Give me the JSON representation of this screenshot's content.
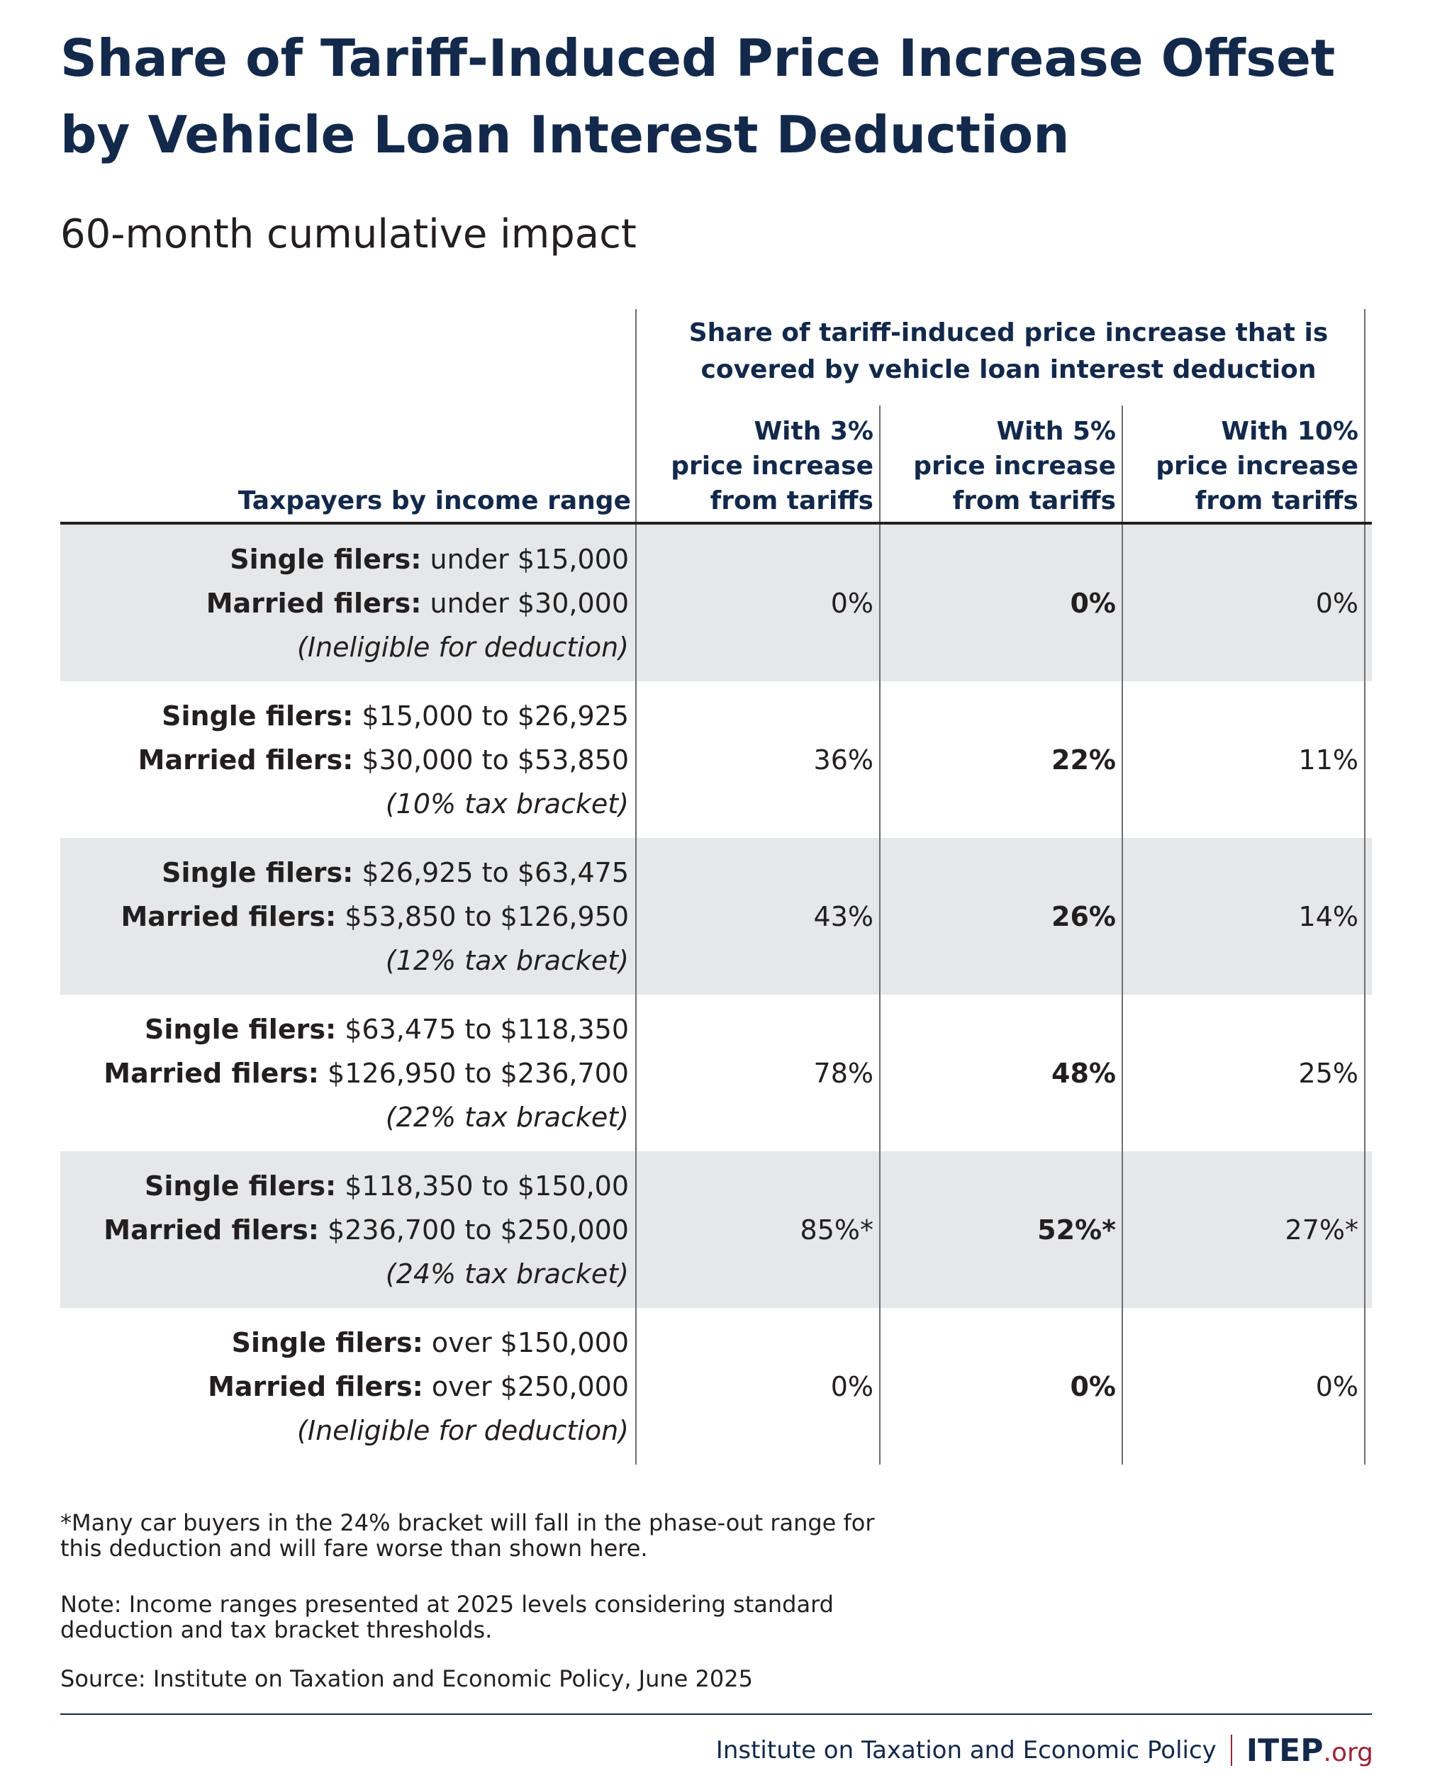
{
  "title": "Share of Tariff-Induced Price Increase Offset by Vehicle Loan Interest Deduction",
  "subtitle": "60-month cumulative impact",
  "table": {
    "group_header": "Share of tariff-induced price increase that is covered by vehicle loan interest deduction",
    "row_header": "Taxpayers by income range",
    "columns": [
      "With 3%\nprice increase\nfrom tariffs",
      "With 5%\nprice increase\nfrom tariffs",
      "With 10%\nprice increase\nfrom tariffs"
    ],
    "rows": [
      {
        "single_label": "Single filers:",
        "single_value": " under $15,000",
        "married_label": "Married filers:",
        "married_value": " under $30,000",
        "note": "(Ineligible for deduction)",
        "values": [
          "0%",
          "0%",
          "0%"
        ]
      },
      {
        "single_label": "Single filers:",
        "single_value": " $15,000 to $26,925",
        "married_label": "Married filers:",
        "married_value": " $30,000 to $53,850",
        "note": "(10% tax bracket)",
        "values": [
          "36%",
          "22%",
          "11%"
        ]
      },
      {
        "single_label": "Single filers:",
        "single_value": " $26,925 to $63,475",
        "married_label": "Married filers:",
        "married_value": " $53,850 to $126,950",
        "note": "(12% tax bracket)",
        "values": [
          "43%",
          "26%",
          "14%"
        ]
      },
      {
        "single_label": "Single filers:",
        "single_value": " $63,475 to $118,350",
        "married_label": "Married filers:",
        "married_value": " $126,950 to $236,700",
        "note": "(22% tax bracket)",
        "values": [
          "78%",
          "48%",
          "25%"
        ]
      },
      {
        "single_label": "Single filers:",
        "single_value": " $118,350 to $150,00",
        "married_label": "Married filers:",
        "married_value": " $236,700 to $250,000",
        "note": "(24% tax bracket)",
        "values": [
          "85%*",
          "52%*",
          "27%*"
        ]
      },
      {
        "single_label": "Single filers:",
        "single_value": " over $150,000",
        "married_label": "Married filers:",
        "married_value": " over $250,000",
        "note": "(Ineligible for deduction)",
        "values": [
          "0%",
          "0%",
          "0%"
        ]
      }
    ]
  },
  "chart_data": {
    "type": "table",
    "title": "Share of Tariff-Induced Price Increase Offset by Vehicle Loan Interest Deduction",
    "subtitle": "60-month cumulative impact",
    "columns": [
      "With 3% price increase from tariffs",
      "With 5% price increase from tariffs",
      "With 10% price increase from tariffs"
    ],
    "categories": [
      "Single filers: under $15,000 / Married filers: under $30,000 (Ineligible for deduction)",
      "Single filers: $15,000 to $26,925 / Married filers: $30,000 to $53,850 (10% tax bracket)",
      "Single filers: $26,925 to $63,475 / Married filers: $53,850 to $126,950 (12% tax bracket)",
      "Single filers: $63,475 to $118,350 / Married filers: $126,950 to $236,700 (22% tax bracket)",
      "Single filers: $118,350 to $150,00 / Married filers: $236,700 to $250,000 (24% tax bracket)",
      "Single filers: over $150,000 / Married filers: over $250,000 (Ineligible for deduction)"
    ],
    "series": [
      {
        "name": "With 3% price increase from tariffs",
        "values": [
          0,
          36,
          43,
          78,
          85,
          0
        ]
      },
      {
        "name": "With 5% price increase from tariffs",
        "values": [
          0,
          22,
          26,
          48,
          52,
          0
        ]
      },
      {
        "name": "With 10% price increase from tariffs",
        "values": [
          0,
          11,
          14,
          25,
          27,
          0
        ]
      }
    ],
    "highlighted_column": "With 5% price increase from tariffs",
    "row_shading": [
      "#e6e7e8",
      "#ffffff",
      "#e6e7e8",
      "#ffffff",
      "#e6e7e8",
      "#ffffff"
    ]
  },
  "footnotes": {
    "asterisk": "*Many car buyers in the 24% bracket will fall in the phase-out range for this deduction and will fare worse than shown here.",
    "note": "Note: Income ranges presented at 2025 levels considering standard deduction and tax bracket thresholds.",
    "source": "Source: Institute on Taxation and Economic Policy, June 2025"
  },
  "branding": {
    "org_name": "Institute on Taxation and Economic Policy",
    "logo_main": "ITEP",
    "logo_suffix": ".org"
  },
  "colors": {
    "title": "#13294b",
    "shaded_row": "#e6e7e8",
    "accent": "#9b2335"
  }
}
